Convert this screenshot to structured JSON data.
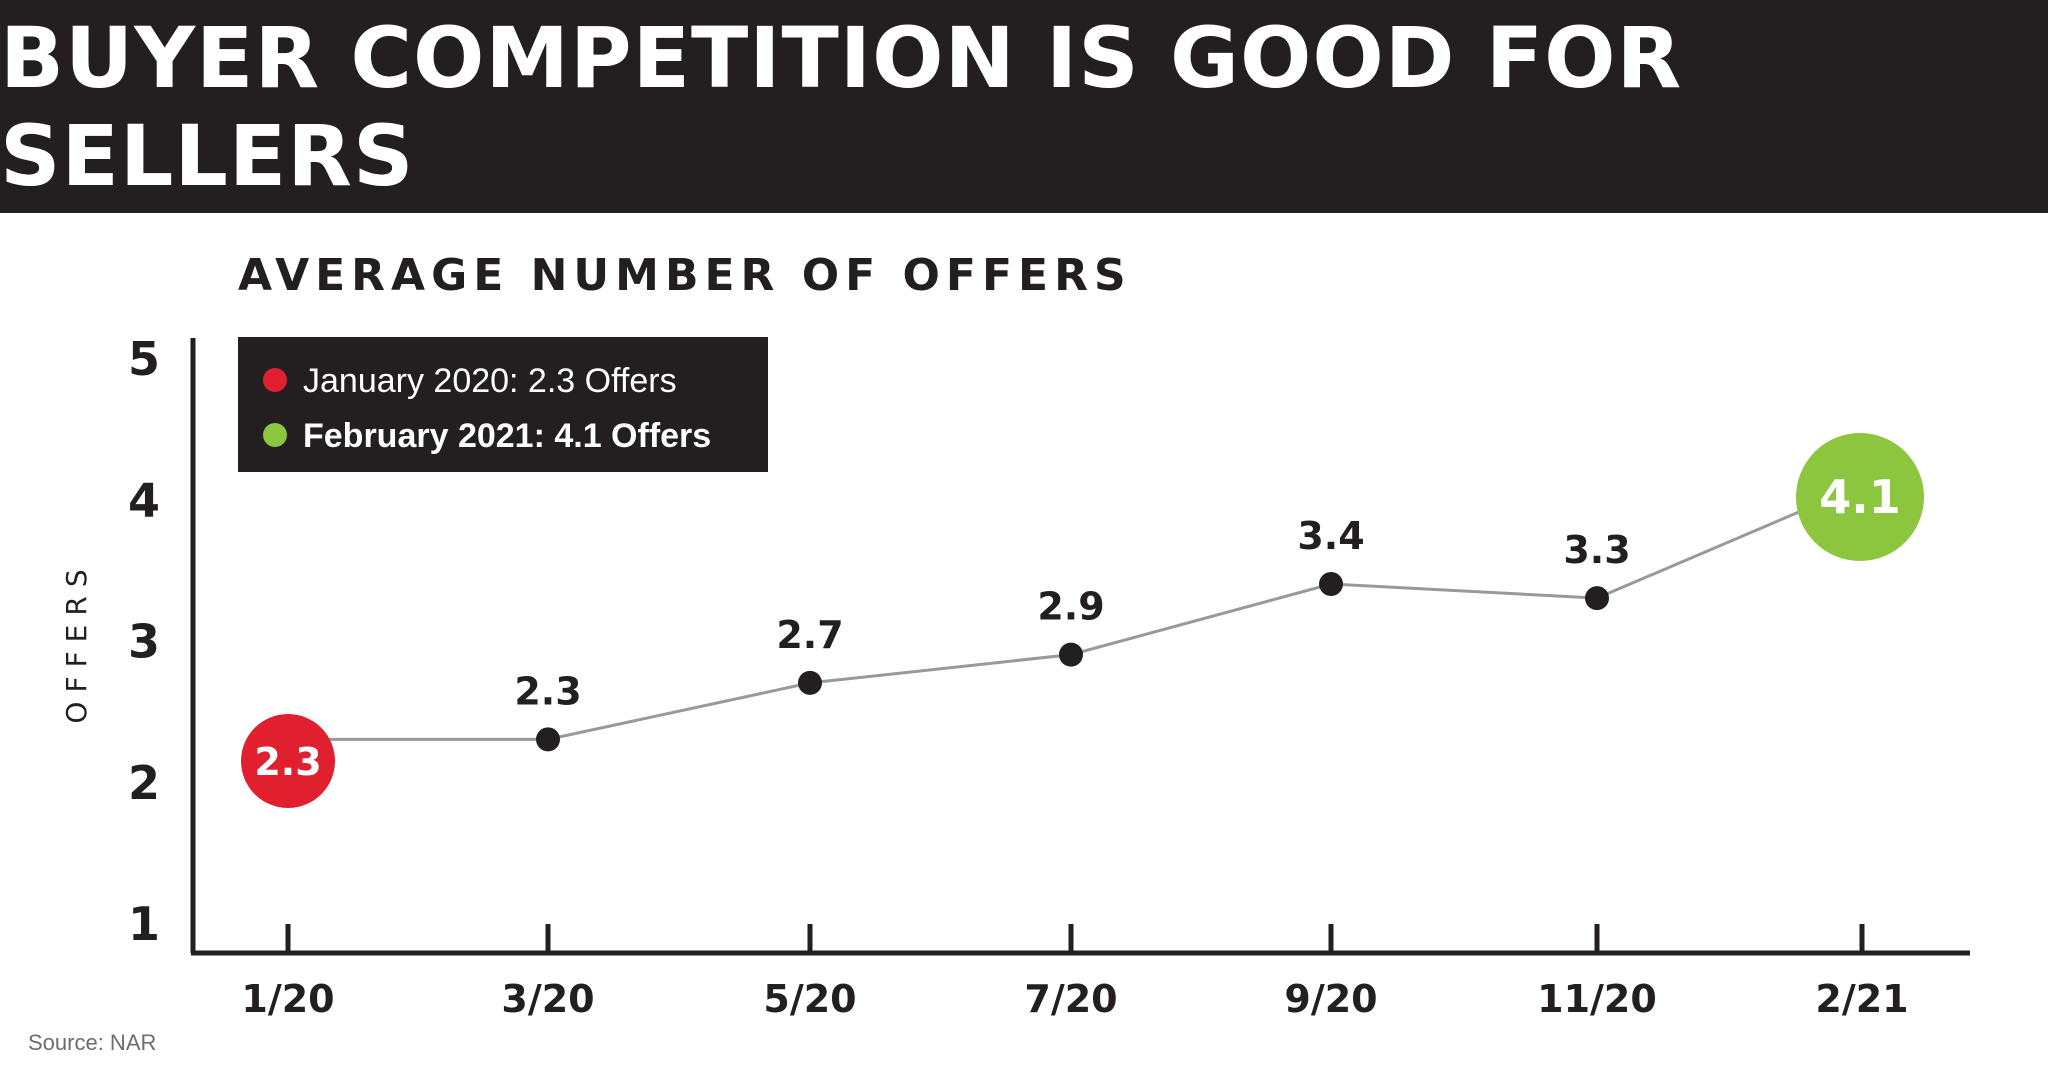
{
  "header": {
    "title": "BUYER COMPETITION IS GOOD FOR SELLERS"
  },
  "source": "Source: NAR",
  "colors": {
    "header_bg": "#231f20",
    "highlight_start": "#e0202e",
    "highlight_end": "#8cc63f",
    "point": "#231f20",
    "line": "#999999"
  },
  "chart_data": {
    "type": "line",
    "title": "AVERAGE NUMBER OF OFFERS",
    "ylabel": "OFFERS",
    "xlabel": "",
    "ylim": [
      1,
      5
    ],
    "yticks": [
      "1",
      "2",
      "3",
      "4",
      "5"
    ],
    "categories": [
      "1/20",
      "3/20",
      "5/20",
      "7/20",
      "9/20",
      "11/20",
      "2/21"
    ],
    "series": [
      {
        "values": [
          2.3,
          2.3,
          2.7,
          2.9,
          3.4,
          3.3,
          4.1
        ],
        "labels": [
          "2.3",
          "2.3",
          "2.7",
          "2.9",
          "3.4",
          "3.3",
          "4.1"
        ]
      }
    ],
    "legend": {
      "position": "top-left",
      "entries": [
        {
          "text": "January 2020: 2.3 Offers",
          "color": "#e0202e"
        },
        {
          "text": "February 2021: 4.1 Offers",
          "color": "#8cc63f"
        }
      ]
    },
    "grid": false
  }
}
